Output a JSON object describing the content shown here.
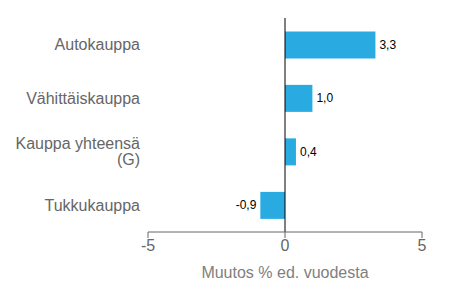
{
  "chart_data": {
    "type": "bar",
    "orientation": "horizontal",
    "categories": [
      "Tukkukauppa",
      "Kauppa yhteensä (G)",
      "Vähittäiskauppa",
      "Autokauppa"
    ],
    "values": [
      -0.9,
      0.4,
      1.0,
      3.3
    ],
    "value_labels": [
      "-0,9",
      "0,4",
      "1,0",
      "3,3"
    ],
    "color": "#29abe2",
    "xlabel": "Muutos % ed. vuodesta",
    "xlim": [
      -5,
      5
    ],
    "xticks": [
      -5,
      0,
      5
    ],
    "grid": false,
    "data_labels": true
  }
}
